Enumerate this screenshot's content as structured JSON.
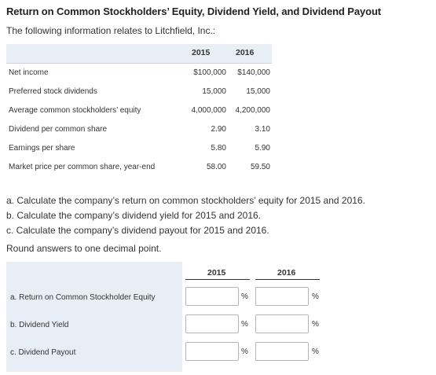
{
  "title": "Return on Common Stockholders’ Equity, Dividend Yield, and Dividend Payout",
  "intro": "The following information relates to Litchfield, Inc.:",
  "info_table": {
    "years": [
      "2015",
      "2016"
    ],
    "rows": [
      {
        "label": "Net income",
        "v2015": "$100,000",
        "v2016": "$140,000"
      },
      {
        "label": "Preferred stock dividends",
        "v2015": "15,000",
        "v2016": "15,000"
      },
      {
        "label": "Average common stockholders’ equity",
        "v2015": "4,000,000",
        "v2016": "4,200,000"
      },
      {
        "label": "Dividend per common share",
        "v2015": "2.90",
        "v2016": "3.10"
      },
      {
        "label": "Earnings per share",
        "v2015": "5.80",
        "v2016": "5.90"
      },
      {
        "label": "Market price per common share, year-end",
        "v2015": "58.00",
        "v2016": "59.50"
      }
    ]
  },
  "questions": [
    "a. Calculate the company’s return on common stockholders’ equity for 2015 and 2016.",
    "b. Calculate the company’s dividend yield for 2015 and 2016.",
    "c. Calculate the company’s dividend payout for 2015 and 2016."
  ],
  "rounding_note": "Round answers to one decimal point.",
  "answer_table": {
    "years": [
      "2015",
      "2016"
    ],
    "unit": "%",
    "rows": [
      {
        "label": "a.  Return on Common Stockholder Equity",
        "v2015": "",
        "v2016": ""
      },
      {
        "label": "b.  Dividend Yield",
        "v2015": "",
        "v2016": ""
      },
      {
        "label": "c.  Dividend Payout",
        "v2015": "",
        "v2016": ""
      }
    ]
  }
}
